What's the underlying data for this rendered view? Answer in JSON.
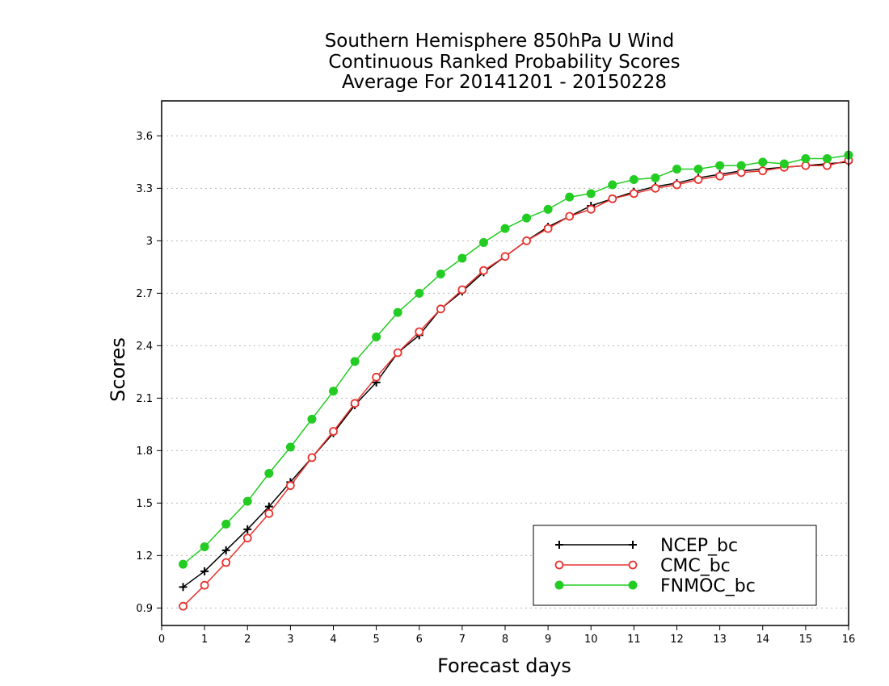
{
  "chart_data": {
    "type": "line",
    "title_lines": [
      "Southern Hemisphere 850hPa U Wind",
      "Continuous Ranked Probability Scores",
      "Average For 20141201 - 20150228"
    ],
    "xlabel": "Forecast days",
    "ylabel": "Scores",
    "xlim": [
      0,
      16
    ],
    "ylim": [
      0.8,
      3.8
    ],
    "xticks": [
      0,
      1,
      2,
      3,
      4,
      5,
      6,
      7,
      8,
      9,
      10,
      11,
      12,
      13,
      14,
      15,
      16
    ],
    "xtick_labels": [
      "0",
      "1",
      "2",
      "3",
      "4",
      "5",
      "6",
      "7",
      "8",
      "9",
      "10",
      "11",
      "12",
      "13",
      "14",
      "15",
      "16"
    ],
    "yticks": [
      0.9,
      1.2,
      1.5,
      1.8,
      2.1,
      2.4,
      2.7,
      3.0,
      3.3,
      3.6
    ],
    "ytick_labels": [
      "0.9",
      "1.2",
      "1.5",
      "1.8",
      "2.1",
      "2.4",
      "2.7",
      "3",
      "3.3",
      "3.6"
    ],
    "grid": "horizontal dotted",
    "legend_position": "bottom-right",
    "x": [
      0.5,
      1,
      1.5,
      2,
      2.5,
      3,
      3.5,
      4,
      4.5,
      5,
      5.5,
      6,
      6.5,
      7,
      7.5,
      8,
      8.5,
      9,
      9.5,
      10,
      10.5,
      11,
      11.5,
      12,
      12.5,
      13,
      13.5,
      14,
      14.5,
      15,
      15.5,
      16
    ],
    "series": [
      {
        "name": "NCEP_bc",
        "color": "#000000",
        "marker": "plus",
        "values": [
          1.02,
          1.11,
          1.23,
          1.35,
          1.48,
          1.62,
          1.76,
          1.9,
          2.06,
          2.19,
          2.36,
          2.46,
          2.61,
          2.71,
          2.82,
          2.91,
          3.0,
          3.08,
          3.14,
          3.2,
          3.24,
          3.28,
          3.31,
          3.33,
          3.36,
          3.38,
          3.4,
          3.41,
          3.42,
          3.43,
          3.44,
          3.45
        ]
      },
      {
        "name": "CMC_bc",
        "color": "#e8322e",
        "marker": "open-circle",
        "values": [
          0.91,
          1.03,
          1.16,
          1.3,
          1.44,
          1.6,
          1.76,
          1.91,
          2.07,
          2.22,
          2.36,
          2.48,
          2.61,
          2.72,
          2.83,
          2.91,
          3.0,
          3.07,
          3.14,
          3.18,
          3.24,
          3.27,
          3.3,
          3.32,
          3.35,
          3.37,
          3.39,
          3.4,
          3.42,
          3.43,
          3.43,
          3.46
        ]
      },
      {
        "name": "FNMOC_bc",
        "color": "#22cc22",
        "marker": "filled-circle",
        "values": [
          1.15,
          1.25,
          1.38,
          1.51,
          1.67,
          1.82,
          1.98,
          2.14,
          2.31,
          2.45,
          2.59,
          2.7,
          2.81,
          2.9,
          2.99,
          3.07,
          3.13,
          3.18,
          3.25,
          3.27,
          3.32,
          3.35,
          3.36,
          3.41,
          3.41,
          3.43,
          3.43,
          3.45,
          3.44,
          3.47,
          3.47,
          3.49
        ]
      }
    ]
  }
}
